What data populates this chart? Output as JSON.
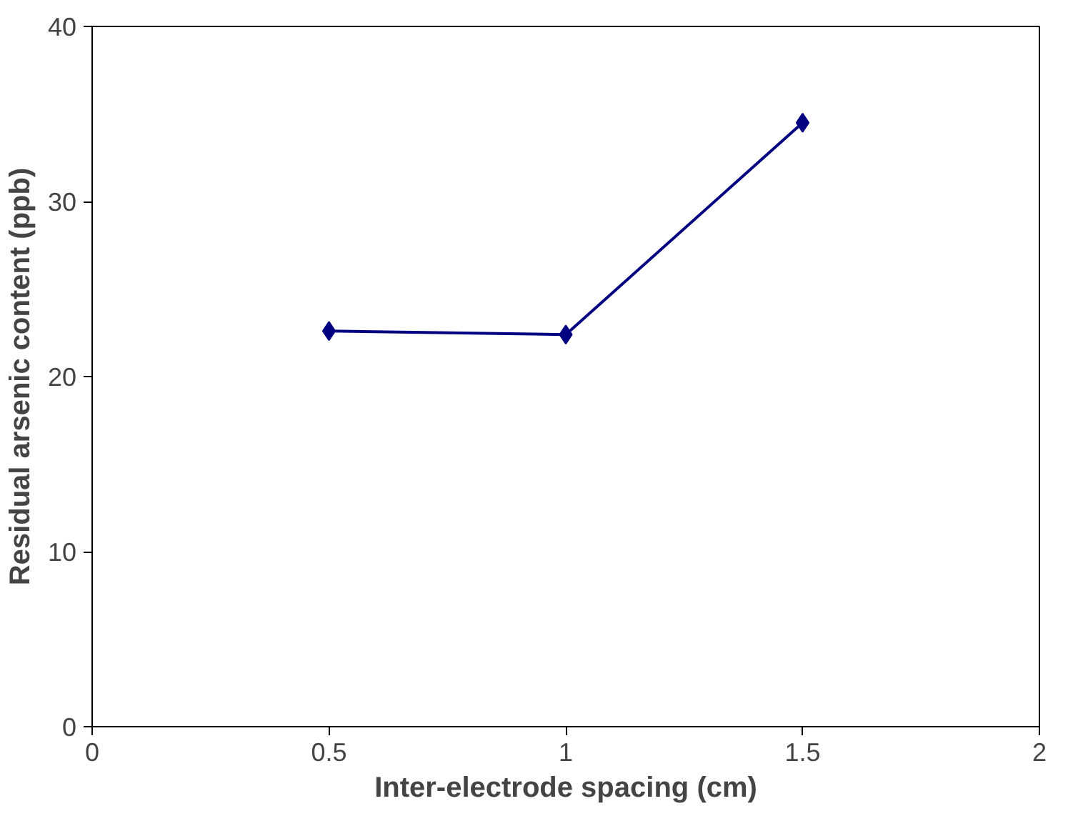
{
  "chart_data": {
    "type": "line",
    "xlabel": "Inter-electrode spacing (cm)",
    "ylabel": "Residual arsenic content (ppb)",
    "x": [
      0.5,
      1,
      1.5
    ],
    "series": [
      {
        "color": "#000080",
        "values": [
          22.6,
          22.4,
          34.5
        ]
      }
    ],
    "xlim": [
      0,
      2
    ],
    "xticks": [
      0,
      0.5,
      1,
      1.5,
      2
    ],
    "ylim": [
      0,
      40
    ],
    "yticks": [
      0,
      10,
      20,
      30,
      40
    ],
    "marker": "diamond",
    "line_style": "solid"
  }
}
